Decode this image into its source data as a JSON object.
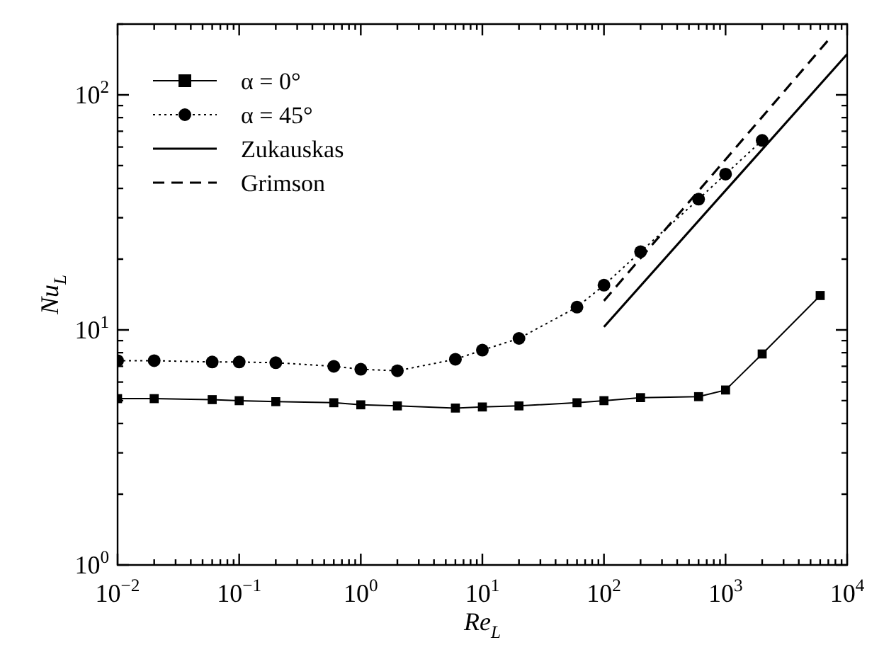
{
  "chart_data": {
    "type": "line",
    "xlabel": "Re$_{L}$",
    "ylabel": "Nu$_{L}$",
    "log": "xy",
    "legend": "top left",
    "xlim": [
      0.01,
      10000
    ],
    "ylim": [
      1,
      200
    ],
    "xticks": [
      {
        "value": 0.01,
        "label": "10$^{−2}$"
      },
      {
        "value": 0.02,
        "label": null
      },
      {
        "value": 0.03,
        "label": null
      },
      {
        "value": 0.04,
        "label": null
      },
      {
        "value": 0.05,
        "label": null
      },
      {
        "value": 0.06,
        "label": null
      },
      {
        "value": 0.07,
        "label": null
      },
      {
        "value": 0.08,
        "label": null
      },
      {
        "value": 0.09,
        "label": null
      },
      {
        "value": 0.1,
        "label": "10$^{−1}$"
      },
      {
        "value": 0.2,
        "label": null
      },
      {
        "value": 0.3,
        "label": null
      },
      {
        "value": 0.4,
        "label": null
      },
      {
        "value": 0.5,
        "label": null
      },
      {
        "value": 0.6,
        "label": null
      },
      {
        "value": 0.7,
        "label": null
      },
      {
        "value": 0.8,
        "label": null
      },
      {
        "value": 0.9,
        "label": null
      },
      {
        "value": 1,
        "label": "10$^{0}$"
      },
      {
        "value": 2,
        "label": null
      },
      {
        "value": 3,
        "label": null
      },
      {
        "value": 4,
        "label": null
      },
      {
        "value": 5,
        "label": null
      },
      {
        "value": 6,
        "label": null
      },
      {
        "value": 7,
        "label": null
      },
      {
        "value": 8,
        "label": null
      },
      {
        "value": 9,
        "label": null
      },
      {
        "value": 10,
        "label": "10$^{1}$"
      },
      {
        "value": 20,
        "label": null
      },
      {
        "value": 30,
        "label": null
      },
      {
        "value": 40,
        "label": null
      },
      {
        "value": 50,
        "label": null
      },
      {
        "value": 60,
        "label": null
      },
      {
        "value": 70,
        "label": null
      },
      {
        "value": 80,
        "label": null
      },
      {
        "value": 90,
        "label": null
      },
      {
        "value": 100,
        "label": "10$^{2}$"
      },
      {
        "value": 200,
        "label": null
      },
      {
        "value": 300,
        "label": null
      },
      {
        "value": 400,
        "label": null
      },
      {
        "value": 500,
        "label": null
      },
      {
        "value": 600,
        "label": null
      },
      {
        "value": 700,
        "label": null
      },
      {
        "value": 800,
        "label": null
      },
      {
        "value": 900,
        "label": null
      },
      {
        "value": 1000,
        "label": "10$^{3}$"
      },
      {
        "value": 2000,
        "label": null
      },
      {
        "value": 3000,
        "label": null
      },
      {
        "value": 4000,
        "label": null
      },
      {
        "value": 5000,
        "label": null
      },
      {
        "value": 6000,
        "label": null
      },
      {
        "value": 7000,
        "label": null
      },
      {
        "value": 8000,
        "label": null
      },
      {
        "value": 9000,
        "label": null
      },
      {
        "value": 10000,
        "label": "10$^{4}$"
      }
    ],
    "yticks": [
      {
        "value": 1,
        "label": "10$^{0}$"
      },
      {
        "value": 2,
        "label": null
      },
      {
        "value": 3,
        "label": null
      },
      {
        "value": 4,
        "label": null
      },
      {
        "value": 5,
        "label": null
      },
      {
        "value": 6,
        "label": null
      },
      {
        "value": 7,
        "label": null
      },
      {
        "value": 8,
        "label": null
      },
      {
        "value": 9,
        "label": null
      },
      {
        "value": 10,
        "label": "10$^{1}$"
      },
      {
        "value": 20,
        "label": null
      },
      {
        "value": 30,
        "label": null
      },
      {
        "value": 40,
        "label": null
      },
      {
        "value": 50,
        "label": null
      },
      {
        "value": 60,
        "label": null
      },
      {
        "value": 70,
        "label": null
      },
      {
        "value": 80,
        "label": null
      },
      {
        "value": 90,
        "label": null
      },
      {
        "value": 100,
        "label": "10$^{2}$"
      },
      {
        "value": 200,
        "label": null
      }
    ],
    "series": [
      {
        "name": "α = 0°",
        "color": "#000000",
        "marker": "square",
        "line_style": "solid",
        "x": [
          0.01,
          0.02,
          0.06,
          0.1,
          0.2,
          0.6,
          1,
          2,
          6,
          10,
          20,
          60,
          100,
          200,
          600,
          1000,
          2000,
          6000
        ],
        "values": [
          5.1,
          5.1,
          5.05,
          5.0,
          4.95,
          4.9,
          4.8,
          4.75,
          4.65,
          4.7,
          4.75,
          4.9,
          5.0,
          5.15,
          5.2,
          5.55,
          7.9,
          14
        ]
      },
      {
        "name": "α = 45°",
        "color": "#000000",
        "marker": "circle",
        "line_style": "dotted",
        "x": [
          0.01,
          0.02,
          0.06,
          0.1,
          0.2,
          0.6,
          1,
          2,
          6,
          10,
          20,
          60,
          100,
          200,
          600,
          1000,
          2000
        ],
        "values": [
          7.4,
          7.4,
          7.3,
          7.3,
          7.25,
          7.0,
          6.8,
          6.7,
          7.5,
          8.2,
          9.2,
          12.5,
          15.5,
          21.5,
          36,
          46,
          64
        ]
      },
      {
        "name": "Zukauskas",
        "color": "#000000",
        "marker": "none",
        "line_style": "solid",
        "x": [
          100,
          10000
        ],
        "values": [
          10.3,
          149
        ]
      },
      {
        "name": "Grimson",
        "color": "#000000",
        "marker": "none",
        "line_style": "dashed",
        "x": [
          100,
          7000
        ],
        "values": [
          13.3,
          171
        ]
      }
    ]
  }
}
